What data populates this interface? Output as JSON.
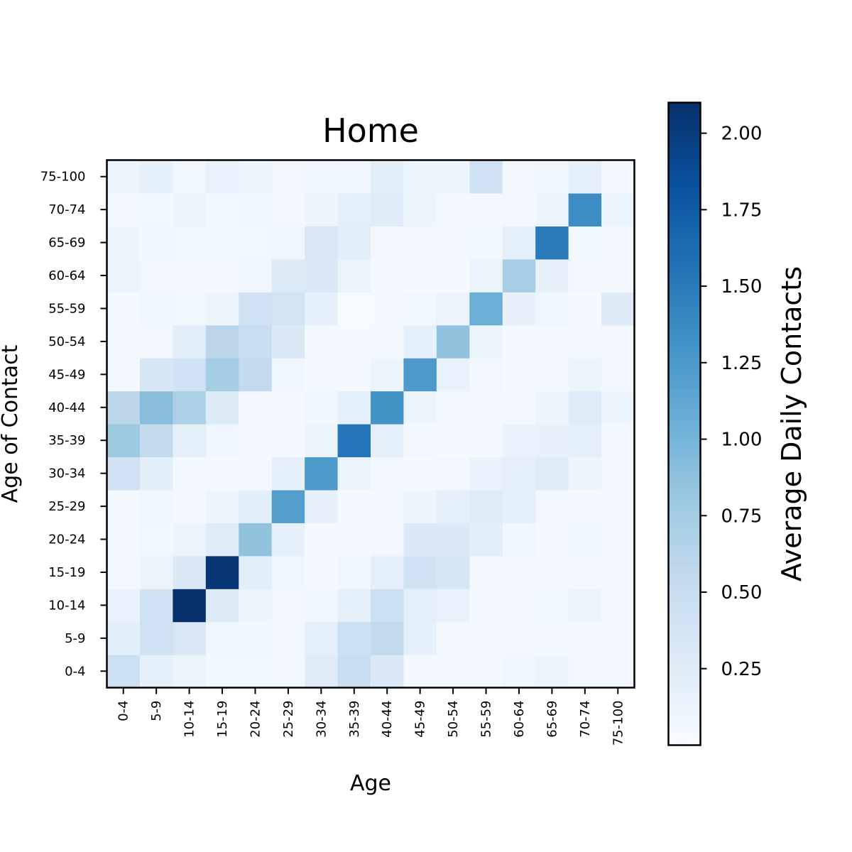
{
  "chart_data": {
    "type": "heatmap",
    "title": "Home",
    "xlabel": "Age",
    "ylabel": "Age of Contact",
    "colorbar_label": "Average Daily Contacts",
    "colormap": "Blues",
    "x_categories": [
      "0-4",
      "5-9",
      "10-14",
      "15-19",
      "20-24",
      "25-29",
      "30-34",
      "35-39",
      "40-44",
      "45-49",
      "50-54",
      "55-59",
      "60-64",
      "65-69",
      "70-74",
      "75-100"
    ],
    "y_categories": [
      "0-4",
      "5-9",
      "10-14",
      "15-19",
      "20-24",
      "25-29",
      "30-34",
      "35-39",
      "40-44",
      "45-49",
      "50-54",
      "55-59",
      "60-64",
      "65-69",
      "70-74",
      "75-100"
    ],
    "values_by_y_category": [
      [
        0.45,
        0.18,
        0.12,
        0.07,
        0.07,
        0.06,
        0.25,
        0.48,
        0.3,
        0.05,
        0.05,
        0.05,
        0.08,
        0.1,
        0.06,
        0.06
      ],
      [
        0.22,
        0.42,
        0.32,
        0.08,
        0.08,
        0.06,
        0.2,
        0.45,
        0.55,
        0.18,
        0.05,
        0.05,
        0.05,
        0.05,
        0.05,
        0.06
      ],
      [
        0.14,
        0.4,
        2.1,
        0.28,
        0.1,
        0.06,
        0.08,
        0.2,
        0.45,
        0.2,
        0.15,
        0.05,
        0.05,
        0.07,
        0.12,
        0.05
      ],
      [
        0.05,
        0.12,
        0.3,
        2.05,
        0.22,
        0.08,
        0.05,
        0.08,
        0.2,
        0.4,
        0.35,
        0.05,
        0.04,
        0.04,
        0.05,
        0.06
      ],
      [
        0.04,
        0.07,
        0.12,
        0.25,
        0.85,
        0.18,
        0.04,
        0.04,
        0.06,
        0.3,
        0.3,
        0.22,
        0.08,
        0.04,
        0.08,
        0.06
      ],
      [
        0.05,
        0.08,
        0.05,
        0.1,
        0.22,
        1.2,
        0.16,
        0.04,
        0.04,
        0.1,
        0.2,
        0.25,
        0.2,
        0.06,
        0.04,
        0.05
      ],
      [
        0.42,
        0.22,
        0.05,
        0.05,
        0.05,
        0.18,
        1.25,
        0.12,
        0.06,
        0.04,
        0.06,
        0.15,
        0.2,
        0.25,
        0.1,
        0.05
      ],
      [
        0.8,
        0.55,
        0.2,
        0.08,
        0.05,
        0.04,
        0.12,
        1.55,
        0.2,
        0.06,
        0.04,
        0.04,
        0.14,
        0.16,
        0.2,
        0.05
      ],
      [
        0.6,
        0.9,
        0.7,
        0.28,
        0.04,
        0.05,
        0.08,
        0.2,
        1.3,
        0.1,
        0.05,
        0.05,
        0.05,
        0.1,
        0.25,
        0.1
      ],
      [
        0.05,
        0.35,
        0.4,
        0.75,
        0.55,
        0.08,
        0.04,
        0.04,
        0.12,
        1.25,
        0.15,
        0.06,
        0.04,
        0.04,
        0.12,
        0.06
      ],
      [
        0.05,
        0.06,
        0.22,
        0.6,
        0.5,
        0.3,
        0.04,
        0.04,
        0.04,
        0.18,
        0.85,
        0.12,
        0.04,
        0.04,
        0.04,
        0.06
      ],
      [
        0.04,
        0.08,
        0.07,
        0.1,
        0.42,
        0.38,
        0.18,
        0.02,
        0.04,
        0.07,
        0.12,
        1.05,
        0.16,
        0.08,
        0.04,
        0.26
      ],
      [
        0.12,
        0.06,
        0.06,
        0.05,
        0.08,
        0.28,
        0.3,
        0.12,
        0.04,
        0.04,
        0.04,
        0.12,
        0.72,
        0.16,
        0.06,
        0.05
      ],
      [
        0.1,
        0.08,
        0.07,
        0.07,
        0.07,
        0.08,
        0.32,
        0.22,
        0.06,
        0.05,
        0.05,
        0.07,
        0.2,
        1.5,
        0.07,
        0.05
      ],
      [
        0.05,
        0.07,
        0.12,
        0.07,
        0.08,
        0.06,
        0.1,
        0.2,
        0.25,
        0.1,
        0.05,
        0.05,
        0.06,
        0.1,
        1.35,
        0.12
      ],
      [
        0.13,
        0.17,
        0.07,
        0.15,
        0.1,
        0.06,
        0.08,
        0.08,
        0.22,
        0.1,
        0.1,
        0.42,
        0.06,
        0.09,
        0.2,
        0.04
      ]
    ],
    "color_range": [
      0.0,
      2.1
    ],
    "colorbar_ticks": [
      "0.25",
      "0.50",
      "0.75",
      "1.00",
      "1.25",
      "1.50",
      "1.75",
      "2.00"
    ],
    "grid": false
  }
}
